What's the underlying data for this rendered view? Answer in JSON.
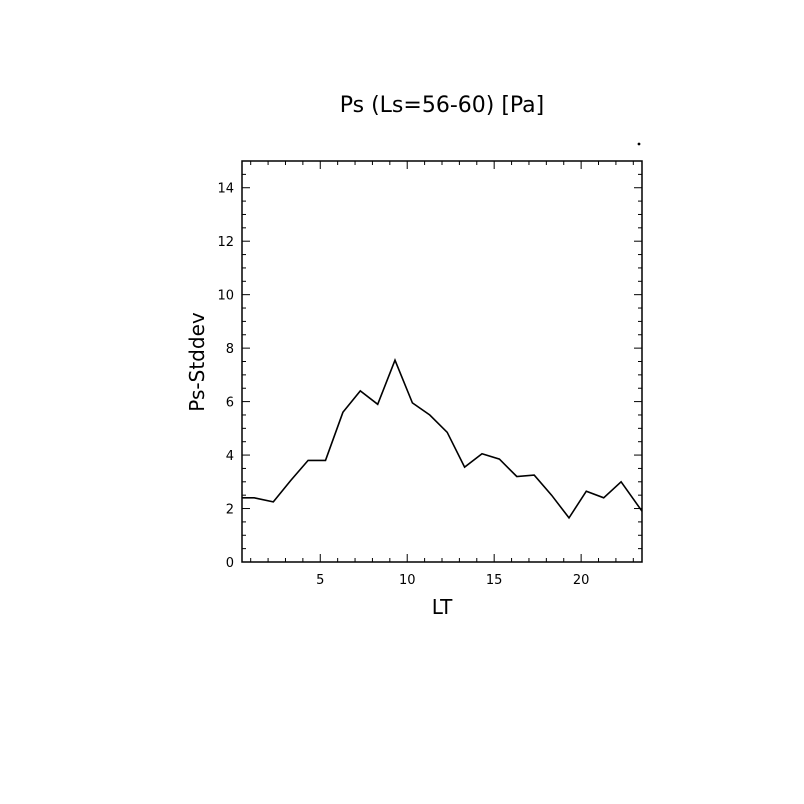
{
  "chart_data": {
    "type": "line",
    "title": "Ps (Ls=56-60) [Pa]",
    "xlabel": "LT",
    "ylabel": "Ps-Stddev",
    "xlim": [
      0.5,
      23.5
    ],
    "ylim": [
      0,
      15
    ],
    "x_ticks": [
      5,
      10,
      15,
      20
    ],
    "y_ticks": [
      0,
      2,
      4,
      6,
      8,
      10,
      12,
      14
    ],
    "grid": false,
    "series": [
      {
        "x": [
          0.5,
          1.2,
          2.3,
          3.3,
          4.3,
          5.3,
          6.3,
          7.3,
          8.3,
          9.3,
          10.3,
          11.3,
          12.3,
          13.3,
          14.3,
          15.3,
          16.3,
          17.3,
          18.3,
          19.3,
          20.3,
          21.3,
          22.3,
          23.5
        ],
        "values": [
          2.4,
          2.4,
          2.25,
          3.05,
          3.8,
          3.8,
          5.6,
          6.4,
          5.9,
          7.55,
          5.95,
          5.5,
          4.85,
          3.55,
          4.05,
          3.85,
          3.2,
          3.25,
          2.5,
          1.65,
          2.65,
          2.4,
          3.0,
          1.9
        ],
        "color": "#000000"
      }
    ]
  }
}
